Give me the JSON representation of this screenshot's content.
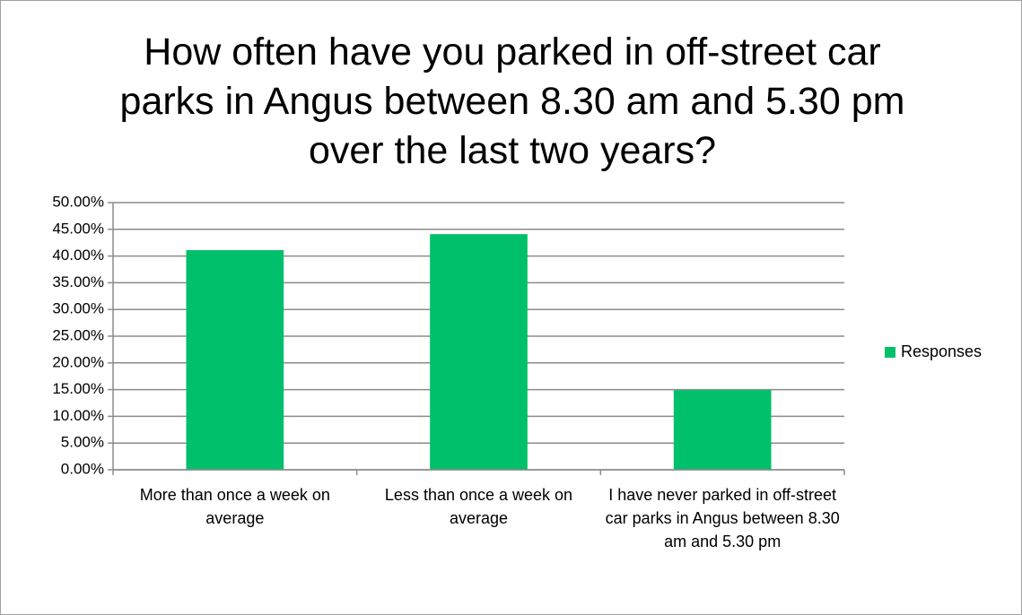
{
  "chart_data": {
    "type": "bar",
    "title": "How often have you parked in off-street car parks in Angus between 8.30 am and 5.30 pm over the last two years?",
    "categories": [
      "More than once a week on average",
      "Less than once a week on average",
      "I have never parked in off-street car parks in Angus between 8.30 am and 5.30 pm"
    ],
    "series": [
      {
        "name": "Responses",
        "color": "#00c06b",
        "values": [
          41.1,
          44.1,
          14.9
        ]
      }
    ],
    "ylim": [
      0,
      50
    ],
    "yticks": [
      {
        "value": 0,
        "label": "0.00%"
      },
      {
        "value": 5,
        "label": "5.00%"
      },
      {
        "value": 10,
        "label": "10.00%"
      },
      {
        "value": 15,
        "label": "15.00%"
      },
      {
        "value": 20,
        "label": "20.00%"
      },
      {
        "value": 25,
        "label": "25.00%"
      },
      {
        "value": 30,
        "label": "30.00%"
      },
      {
        "value": 35,
        "label": "35.00%"
      },
      {
        "value": 40,
        "label": "40.00%"
      },
      {
        "value": 45,
        "label": "45.00%"
      },
      {
        "value": 50,
        "label": "50.00%"
      }
    ],
    "grid": true,
    "legend": "right"
  }
}
